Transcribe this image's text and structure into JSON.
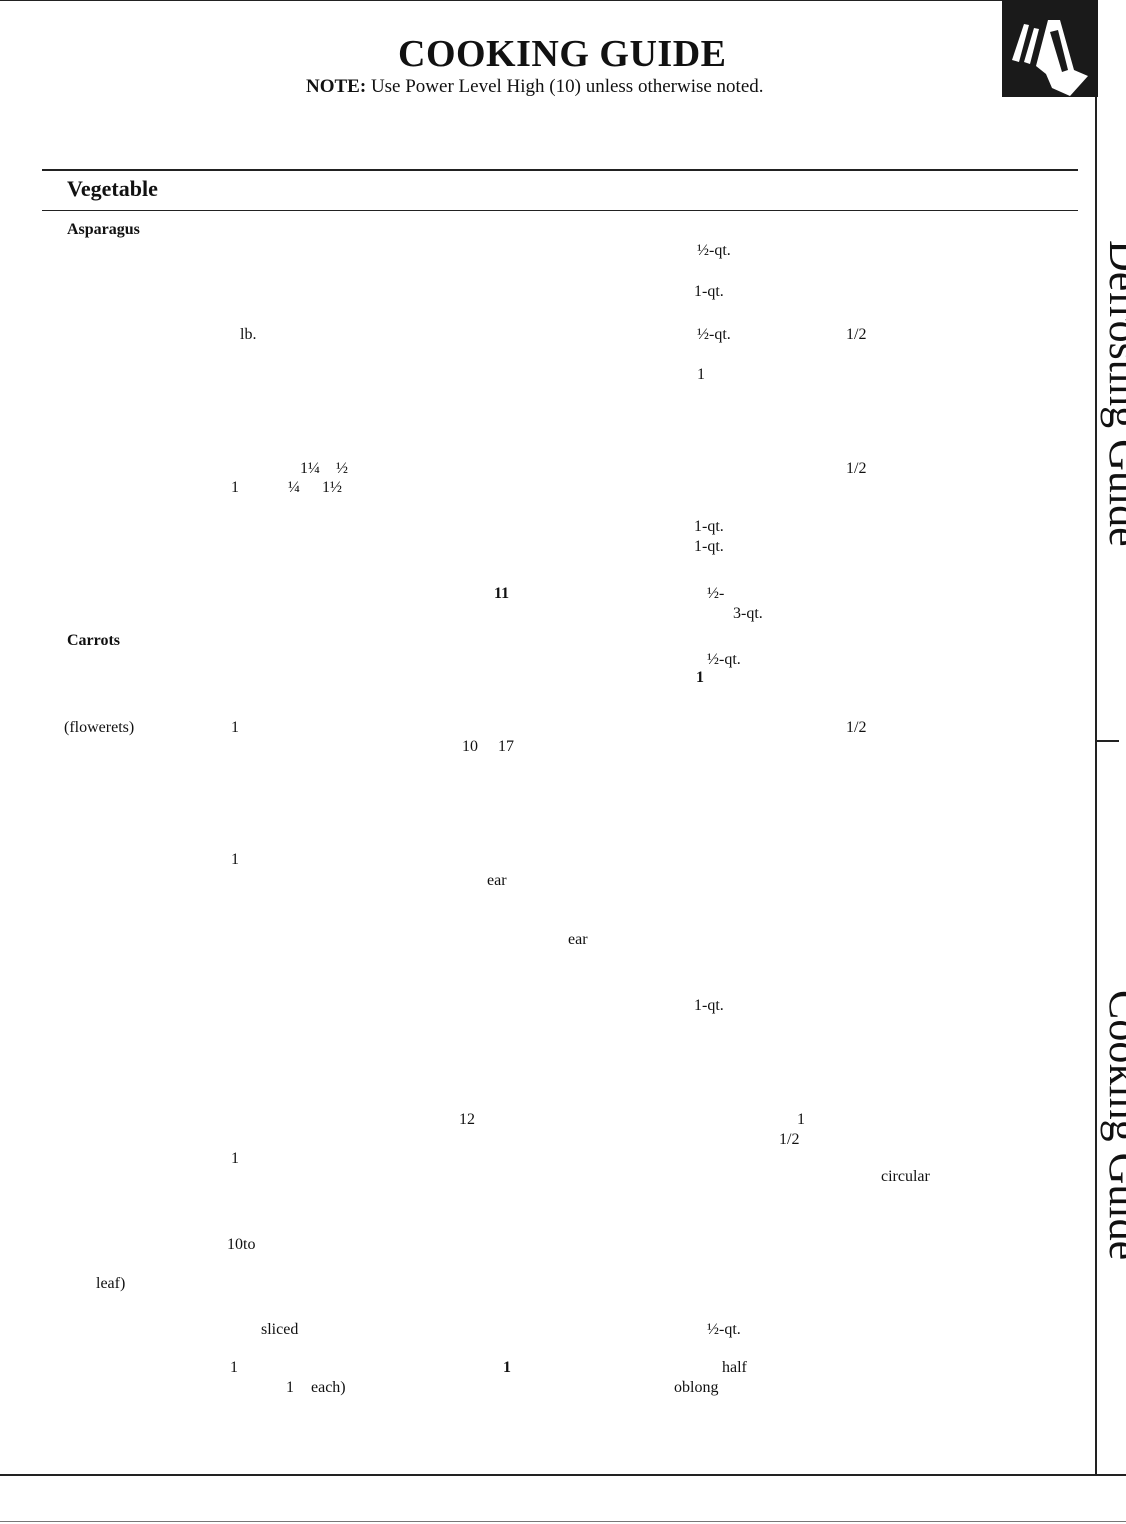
{
  "header": {
    "title": "COOKING GUIDE",
    "note_prefix": "NOTE:",
    "note_text": "Use Power Level High (10) unless otherwise noted."
  },
  "table": {
    "column_header": "Vegetable"
  },
  "cells": [
    "Asparagus",
    "½-qt.",
    "1-qt.",
    "lb.",
    "½-qt.",
    "1/2",
    "1",
    "1¼",
    "½",
    "1/2",
    "1",
    "¼",
    "1½",
    "1-qt.",
    "1-qt.",
    "11",
    "½-",
    "3-qt.",
    "Carrots",
    "½-qt.",
    "1",
    "(flowerets)",
    "1",
    "1/2",
    "10",
    "17",
    "1",
    "ear",
    "ear",
    "1-qt.",
    "12",
    "1",
    "1/2",
    "1",
    "circular",
    "10to",
    "leaf)",
    "sliced",
    "½-qt.",
    "1",
    "1",
    "half",
    "1",
    "each)",
    "oblong"
  ],
  "sidebar": {
    "tab_top": "Defrosting Guide",
    "tab_bottom": "Cooking Guide"
  },
  "icon": "hand-pointing-icon"
}
